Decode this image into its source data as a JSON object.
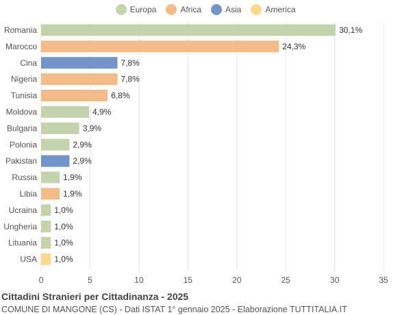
{
  "chart_data": {
    "type": "bar",
    "orientation": "horizontal",
    "title": "Cittadini Stranieri per Cittadinanza - 2025",
    "subtitle": "COMUNE DI MANGONE (CS) - Dati ISTAT 1° gennaio 2025 - Elaborazione TUTTITALIA.IT",
    "legend": [
      {
        "name": "Europa",
        "color": "#c3d3ac"
      },
      {
        "name": "Africa",
        "color": "#f2bb88"
      },
      {
        "name": "Asia",
        "color": "#7394c9"
      },
      {
        "name": "America",
        "color": "#fdd88a"
      }
    ],
    "legend_position": "top",
    "xlim": [
      0,
      35
    ],
    "xticks": [
      0,
      5,
      10,
      15,
      20,
      25,
      30,
      35
    ],
    "grid": true,
    "bars": [
      {
        "label": "Romania",
        "value": 30.1,
        "value_label": "30,1%",
        "group": "Europa"
      },
      {
        "label": "Marocco",
        "value": 24.3,
        "value_label": "24,3%",
        "group": "Africa"
      },
      {
        "label": "Cina",
        "value": 7.8,
        "value_label": "7,8%",
        "group": "Asia"
      },
      {
        "label": "Nigeria",
        "value": 7.8,
        "value_label": "7,8%",
        "group": "Africa"
      },
      {
        "label": "Tunisia",
        "value": 6.8,
        "value_label": "6,8%",
        "group": "Africa"
      },
      {
        "label": "Moldova",
        "value": 4.9,
        "value_label": "4,9%",
        "group": "Europa"
      },
      {
        "label": "Bulgaria",
        "value": 3.9,
        "value_label": "3,9%",
        "group": "Europa"
      },
      {
        "label": "Polonia",
        "value": 2.9,
        "value_label": "2,9%",
        "group": "Europa"
      },
      {
        "label": "Pakistan",
        "value": 2.9,
        "value_label": "2,9%",
        "group": "Asia"
      },
      {
        "label": "Russia",
        "value": 1.9,
        "value_label": "1,9%",
        "group": "Europa"
      },
      {
        "label": "Libia",
        "value": 1.9,
        "value_label": "1,9%",
        "group": "Africa"
      },
      {
        "label": "Ucraina",
        "value": 1.0,
        "value_label": "1,0%",
        "group": "Europa"
      },
      {
        "label": "Ungheria",
        "value": 1.0,
        "value_label": "1,0%",
        "group": "Europa"
      },
      {
        "label": "Lituania",
        "value": 1.0,
        "value_label": "1,0%",
        "group": "Europa"
      },
      {
        "label": "USA",
        "value": 1.0,
        "value_label": "1,0%",
        "group": "America"
      }
    ]
  }
}
